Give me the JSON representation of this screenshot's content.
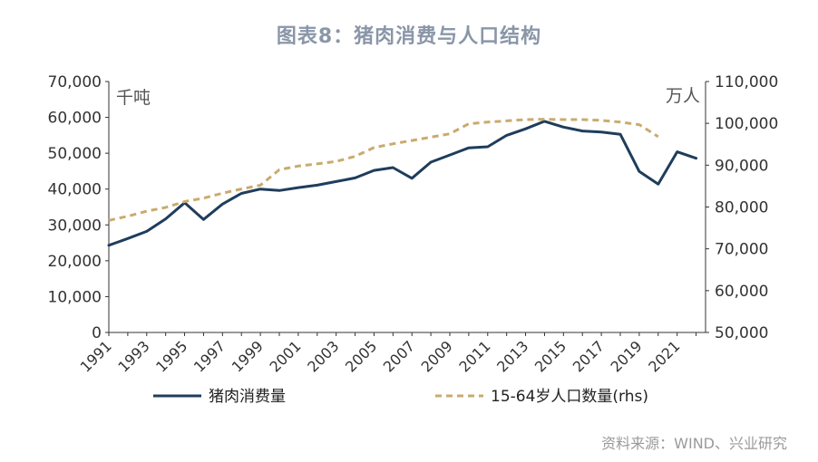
{
  "chart_data": {
    "type": "line",
    "title": "图表8：猪肉消费与人口结构",
    "left_unit": "千吨",
    "right_unit": "万人",
    "source": "资料来源：WIND、兴业研究",
    "x_ticks": [
      "1991",
      "1993",
      "1995",
      "1997",
      "1999",
      "2001",
      "2003",
      "2005",
      "2007",
      "2009",
      "2011",
      "2013",
      "2015",
      "2017",
      "2019",
      "2021"
    ],
    "y_left": {
      "min": 0,
      "max": 70000,
      "step": 10000,
      "tick_labels": [
        "0",
        "10,000",
        "20,000",
        "30,000",
        "40,000",
        "50,000",
        "60,000",
        "70,000"
      ]
    },
    "y_right": {
      "min": 50000,
      "max": 110000,
      "step": 10000,
      "tick_labels": [
        "50,000",
        "60,000",
        "70,000",
        "80,000",
        "90,000",
        "100,000",
        "110,000"
      ]
    },
    "series": [
      {
        "name": "猪肉消费量",
        "axis": "left",
        "color": "#1f3d5c",
        "style": "solid",
        "x": [
          1991,
          1992,
          1993,
          1994,
          1995,
          1996,
          1997,
          1998,
          1999,
          2000,
          2001,
          2002,
          2003,
          2004,
          2005,
          2006,
          2007,
          2008,
          2009,
          2010,
          2011,
          2012,
          2013,
          2014,
          2015,
          2016,
          2017,
          2018,
          2019,
          2020,
          2021,
          2022
        ],
        "values": [
          24300,
          26200,
          28200,
          31700,
          36200,
          31500,
          35800,
          38800,
          40000,
          39600,
          40400,
          41100,
          42100,
          43100,
          45200,
          46000,
          43000,
          47500,
          49500,
          51500,
          51800,
          55000,
          56800,
          58900,
          57300,
          56200,
          55900,
          55300,
          44900,
          41400,
          50400,
          48600
        ]
      },
      {
        "name": "15-64岁人口数量(rhs)",
        "axis": "right",
        "color": "#c9ab6e",
        "style": "dashed",
        "x": [
          1991,
          1992,
          1993,
          1994,
          1995,
          1996,
          1997,
          1998,
          1999,
          2000,
          2001,
          2002,
          2003,
          2004,
          2005,
          2006,
          2007,
          2008,
          2009,
          2010,
          2011,
          2012,
          2013,
          2014,
          2015,
          2016,
          2017,
          2018,
          2019,
          2020
        ],
        "values": [
          76800,
          77800,
          79000,
          79900,
          81300,
          82100,
          83300,
          84300,
          85200,
          88900,
          89800,
          90300,
          90900,
          92100,
          94200,
          95100,
          95900,
          96700,
          97500,
          99900,
          100300,
          100600,
          100900,
          101000,
          100900,
          100900,
          100700,
          100300,
          99700,
          96800
        ]
      }
    ]
  }
}
